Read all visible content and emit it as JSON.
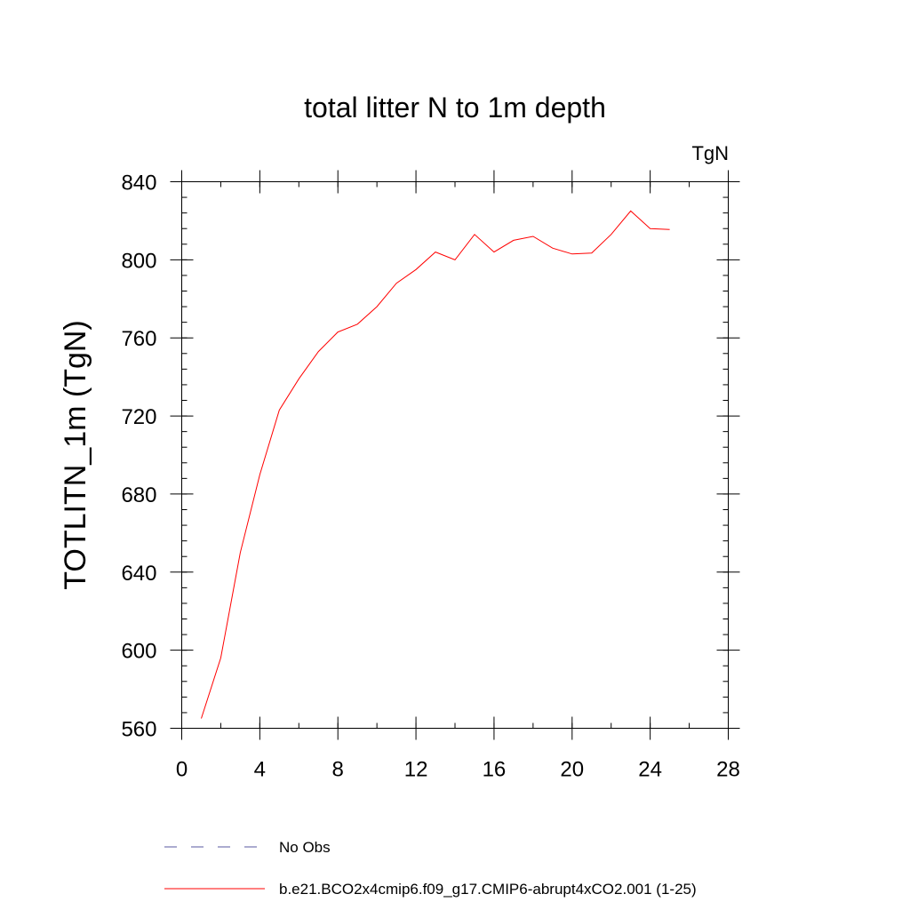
{
  "chart_data": {
    "type": "line",
    "title": "total litter N to 1m depth",
    "units_label": "TgN",
    "ylabel": "TOTLITN_1m  (TgN)",
    "xlabel": "",
    "xlim": [
      0,
      28
    ],
    "ylim": [
      560,
      840
    ],
    "x_ticks": [
      0,
      4,
      8,
      12,
      16,
      20,
      24,
      28
    ],
    "y_ticks": [
      560,
      600,
      640,
      680,
      720,
      760,
      800,
      840
    ],
    "x_minor_step": 2,
    "y_minor_step": 8,
    "grid": false,
    "legend_position": "bottom",
    "series": [
      {
        "name": "b.e21.BCO2x4cmip6.f09_g17.CMIP6-abrupt4xCO2.001 (1-25)",
        "color": "#ff0000",
        "style": "solid",
        "x": [
          1,
          2,
          3,
          4,
          5,
          6,
          7,
          8,
          9,
          10,
          11,
          12,
          13,
          14,
          15,
          16,
          17,
          18,
          19,
          20,
          21,
          22,
          23,
          24,
          25
        ],
        "y": [
          565,
          596,
          650,
          690,
          723,
          739,
          753,
          763,
          767,
          776,
          788,
          795,
          804,
          800,
          813,
          804,
          810,
          812,
          806,
          803,
          803.5,
          813,
          825,
          816,
          815.5
        ]
      }
    ],
    "legend": [
      {
        "label": "No Obs",
        "color": "#5a5aa0",
        "style": "dashed"
      },
      {
        "label": "b.e21.BCO2x4cmip6.f09_g17.CMIP6-abrupt4xCO2.001 (1-25)",
        "color": "#ff0000",
        "style": "solid"
      }
    ]
  }
}
